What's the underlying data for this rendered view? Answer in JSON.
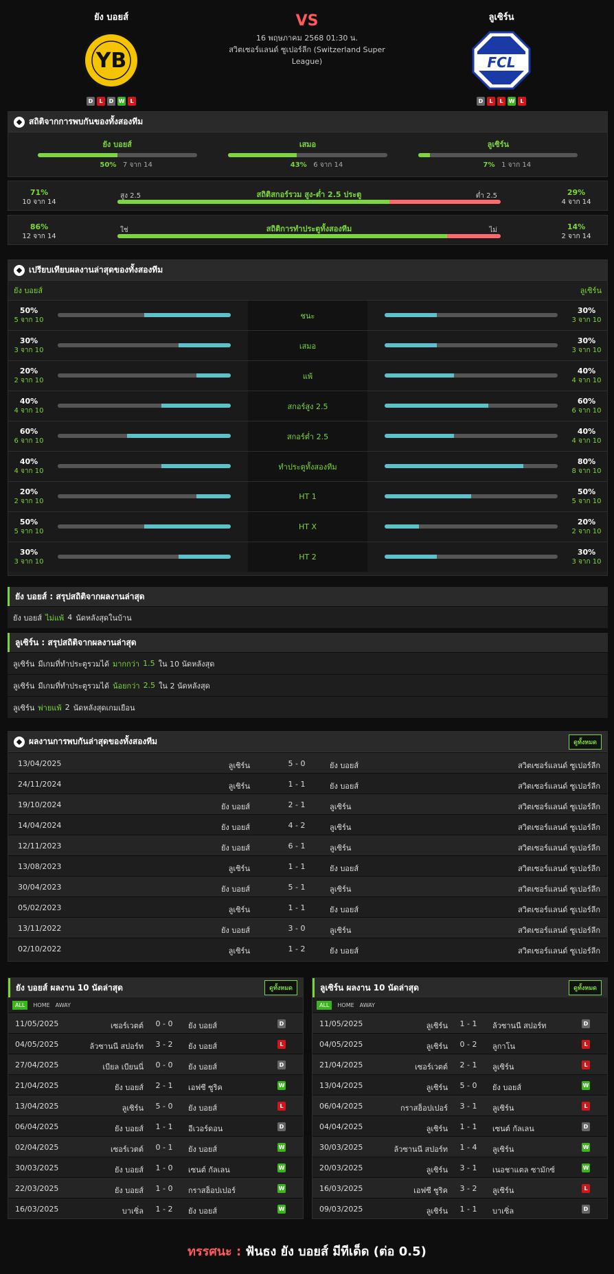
{
  "header": {
    "home": {
      "name": "ยัง บอยส์",
      "form": [
        "D",
        "L",
        "D",
        "W",
        "L"
      ]
    },
    "away": {
      "name": "ลูเซิร์น",
      "form": [
        "D",
        "L",
        "L",
        "W",
        "L"
      ]
    },
    "vs": "VS",
    "datetime": "16 พฤษภาคม 2568 01:30 น.",
    "league_line1": "สวิตเซอร์แลนด์ ซูเปอร์ลีก (Switzerland Super",
    "league_line2": "League)"
  },
  "h2h": {
    "title": "สถิติจากการพบกันของทั้งสองทีม",
    "cols": [
      {
        "label": "ยัง บอยส์",
        "pct": "50%",
        "sub": "7 จาก 14",
        "value": 50
      },
      {
        "label": "เสมอ",
        "pct": "43%",
        "sub": "6 จาก 14",
        "value": 43
      },
      {
        "label": "ลูเซิร์น",
        "pct": "7%",
        "sub": "1 จาก 14",
        "value": 7
      }
    ],
    "ou": {
      "left_pct": "71%",
      "left_sub": "10 จาก 14",
      "left_label": "สูง 2.5",
      "title": "สถิติสกอร์รวม สูง-ต่ำ 2.5 ประตู",
      "right_label": "ต่ำ 2.5",
      "right_pct": "29%",
      "right_sub": "4 จาก 14",
      "value": 71
    },
    "btts": {
      "left_pct": "86%",
      "left_sub": "12 จาก 14",
      "left_label": "ใช่",
      "title": "สถิติการทำประตูทั้งสองทีม",
      "right_label": "ไม่",
      "right_pct": "14%",
      "right_sub": "2 จาก 14",
      "value": 86
    }
  },
  "compare": {
    "title": "เปรียบเทียบผลงานล่าสุดของทั้งสองทีม",
    "home": "ยัง บอยส์",
    "away": "ลูเซิร์น",
    "rows": [
      {
        "label": "ชนะ",
        "lp": "50%",
        "ls": "5 จาก 10",
        "lv": 50,
        "rp": "30%",
        "rs": "3 จาก 10",
        "rv": 30
      },
      {
        "label": "เสมอ",
        "lp": "30%",
        "ls": "3 จาก 10",
        "lv": 30,
        "rp": "30%",
        "rs": "3 จาก 10",
        "rv": 30
      },
      {
        "label": "แพ้",
        "lp": "20%",
        "ls": "2 จาก 10",
        "lv": 20,
        "rp": "40%",
        "rs": "4 จาก 10",
        "rv": 40
      },
      {
        "label": "สกอร์สูง 2.5",
        "lp": "40%",
        "ls": "4 จาก 10",
        "lv": 40,
        "rp": "60%",
        "rs": "6 จาก 10",
        "rv": 60
      },
      {
        "label": "สกอร์ต่ำ 2.5",
        "lp": "60%",
        "ls": "6 จาก 10",
        "lv": 60,
        "rp": "40%",
        "rs": "4 จาก 10",
        "rv": 40
      },
      {
        "label": "ทำประตูทั้งสองทีม",
        "lp": "40%",
        "ls": "4 จาก 10",
        "lv": 40,
        "rp": "80%",
        "rs": "8 จาก 10",
        "rv": 80
      },
      {
        "label": "HT 1",
        "lp": "20%",
        "ls": "2 จาก 10",
        "lv": 20,
        "rp": "50%",
        "rs": "5 จาก 10",
        "rv": 50
      },
      {
        "label": "HT X",
        "lp": "50%",
        "ls": "5 จาก 10",
        "lv": 50,
        "rp": "20%",
        "rs": "2 จาก 10",
        "rv": 20
      },
      {
        "label": "HT 2",
        "lp": "30%",
        "ls": "3 จาก 10",
        "lv": 30,
        "rp": "30%",
        "rs": "3 จาก 10",
        "rv": 30
      }
    ]
  },
  "sum_home": {
    "title": "ยัง บอยส์ : สรุปสถิติจากผลงานล่าสุด",
    "rows": [
      {
        "t": "ยัง บอยส์",
        "hl": "ไม่แพ้",
        "n": "4",
        "rest": "นัดหลังสุดในบ้าน"
      }
    ]
  },
  "sum_away": {
    "title": "ลูเซิร์น : สรุปสถิติจากผลงานล่าสุด",
    "rows": [
      {
        "t": "ลูเซิร์น",
        "pre": "มีเกมที่ทำประตูรวมได้",
        "hl": "มากกว่า",
        "n": "1.5",
        "rest": "ใน 10 นัดหลังสุด"
      },
      {
        "t": "ลูเซิร์น",
        "pre": "มีเกมที่ทำประตูรวมได้",
        "hl": "น้อยกว่า",
        "n": "2.5",
        "rest": "ใน 2 นัดหลังสุด"
      },
      {
        "t": "ลูเซิร์น",
        "pre": "",
        "hl": "พ่ายแพ้",
        "n": "2",
        "rest": "นัดหลังสุดเกมเยือน"
      }
    ]
  },
  "h2h_matches": {
    "title": "ผลงานการพบกันล่าสุดของทั้งสองทีม",
    "btn": "ดูทั้งหมด",
    "rows": [
      [
        "13/04/2025",
        "ลูเซิร์น",
        "5 - 0",
        "ยัง บอยส์",
        "สวิตเซอร์แลนด์ ซูเปอร์ลีก"
      ],
      [
        "24/11/2024",
        "ลูเซิร์น",
        "1 - 1",
        "ยัง บอยส์",
        "สวิตเซอร์แลนด์ ซูเปอร์ลีก"
      ],
      [
        "19/10/2024",
        "ยัง บอยส์",
        "2 - 1",
        "ลูเซิร์น",
        "สวิตเซอร์แลนด์ ซูเปอร์ลีก"
      ],
      [
        "14/04/2024",
        "ยัง บอยส์",
        "4 - 2",
        "ลูเซิร์น",
        "สวิตเซอร์แลนด์ ซูเปอร์ลีก"
      ],
      [
        "12/11/2023",
        "ยัง บอยส์",
        "6 - 1",
        "ลูเซิร์น",
        "สวิตเซอร์แลนด์ ซูเปอร์ลีก"
      ],
      [
        "13/08/2023",
        "ลูเซิร์น",
        "1 - 1",
        "ยัง บอยส์",
        "สวิตเซอร์แลนด์ ซูเปอร์ลีก"
      ],
      [
        "30/04/2023",
        "ยัง บอยส์",
        "5 - 1",
        "ลูเซิร์น",
        "สวิตเซอร์แลนด์ ซูเปอร์ลีก"
      ],
      [
        "05/02/2023",
        "ลูเซิร์น",
        "1 - 1",
        "ยัง บอยส์",
        "สวิตเซอร์แลนด์ ซูเปอร์ลีก"
      ],
      [
        "13/11/2022",
        "ยัง บอยส์",
        "3 - 0",
        "ลูเซิร์น",
        "สวิตเซอร์แลนด์ ซูเปอร์ลีก"
      ],
      [
        "02/10/2022",
        "ลูเซิร์น",
        "1 - 2",
        "ยัง บอยส์",
        "สวิตเซอร์แลนด์ ซูเปอร์ลีก"
      ]
    ]
  },
  "last_home": {
    "title": "ยัง บอยส์ ผลงาน 10 นัดล่าสุด",
    "btn": "ดูทั้งหมด",
    "tabs": [
      "ALL",
      "HOME",
      "AWAY"
    ],
    "rows": [
      [
        "11/05/2025",
        "เซอร์เวตต์",
        "0 - 0",
        "ยัง บอยส์",
        "D"
      ],
      [
        "04/05/2025",
        "ล้วซานนี สปอร์ท",
        "3 - 2",
        "ยัง บอยส์",
        "L"
      ],
      [
        "27/04/2025",
        "เบียล เบียนนี่",
        "0 - 0",
        "ยัง บอยส์",
        "D"
      ],
      [
        "21/04/2025",
        "ยัง บอยส์",
        "2 - 1",
        "เอฟซี ซูริค",
        "W"
      ],
      [
        "13/04/2025",
        "ลูเซิร์น",
        "5 - 0",
        "ยัง บอยส์",
        "L"
      ],
      [
        "06/04/2025",
        "ยัง บอยส์",
        "1 - 1",
        "อีเวอร์ดอน",
        "D"
      ],
      [
        "02/04/2025",
        "เซอร์เวตต์",
        "0 - 1",
        "ยัง บอยส์",
        "W"
      ],
      [
        "30/03/2025",
        "ยัง บอยส์",
        "1 - 0",
        "เซนต์ กัลเลน",
        "W"
      ],
      [
        "22/03/2025",
        "ยัง บอยส์",
        "1 - 0",
        "กราสฮ็อปเปอร์",
        "W"
      ],
      [
        "16/03/2025",
        "บาเซิ่ล",
        "1 - 2",
        "ยัง บอยส์",
        "W"
      ]
    ]
  },
  "last_away": {
    "title": "ลูเซิร์น ผลงาน 10 นัดล่าสุด",
    "btn": "ดูทั้งหมด",
    "tabs": [
      "ALL",
      "HOME",
      "AWAY"
    ],
    "rows": [
      [
        "11/05/2025",
        "ลูเซิร์น",
        "1 - 1",
        "ล้วซานนี สปอร์ท",
        "D"
      ],
      [
        "04/05/2025",
        "ลูเซิร์น",
        "0 - 2",
        "ลูกาโน",
        "L"
      ],
      [
        "21/04/2025",
        "เซอร์เวตต์",
        "2 - 1",
        "ลูเซิร์น",
        "L"
      ],
      [
        "13/04/2025",
        "ลูเซิร์น",
        "5 - 0",
        "ยัง บอยส์",
        "W"
      ],
      [
        "06/04/2025",
        "กราสฮ็อปเปอร์",
        "3 - 1",
        "ลูเซิร์น",
        "L"
      ],
      [
        "04/04/2025",
        "ลูเซิร์น",
        "1 - 1",
        "เซนต์ กัลเลน",
        "D"
      ],
      [
        "30/03/2025",
        "ล้วซานนี สปอร์ท",
        "1 - 4",
        "ลูเซิร์น",
        "W"
      ],
      [
        "20/03/2025",
        "ลูเซิร์น",
        "3 - 1",
        "เนอชาแตล ซามักซ์",
        "W"
      ],
      [
        "16/03/2025",
        "เอฟซี ซูริค",
        "3 - 2",
        "ลูเซิร์น",
        "L"
      ],
      [
        "09/03/2025",
        "ลูเซิร์น",
        "1 - 1",
        "บาเซิ่ล",
        "D"
      ]
    ]
  },
  "footer": {
    "label": "ทรรศนะ :",
    "text": "ฟันธง ยัง บอยส์ มีทีเด็ด (ต่อ 0.5)"
  },
  "colors": {
    "green": "#7cd83a",
    "red": "#ff5a5a",
    "bar": "#5ec1c9"
  }
}
